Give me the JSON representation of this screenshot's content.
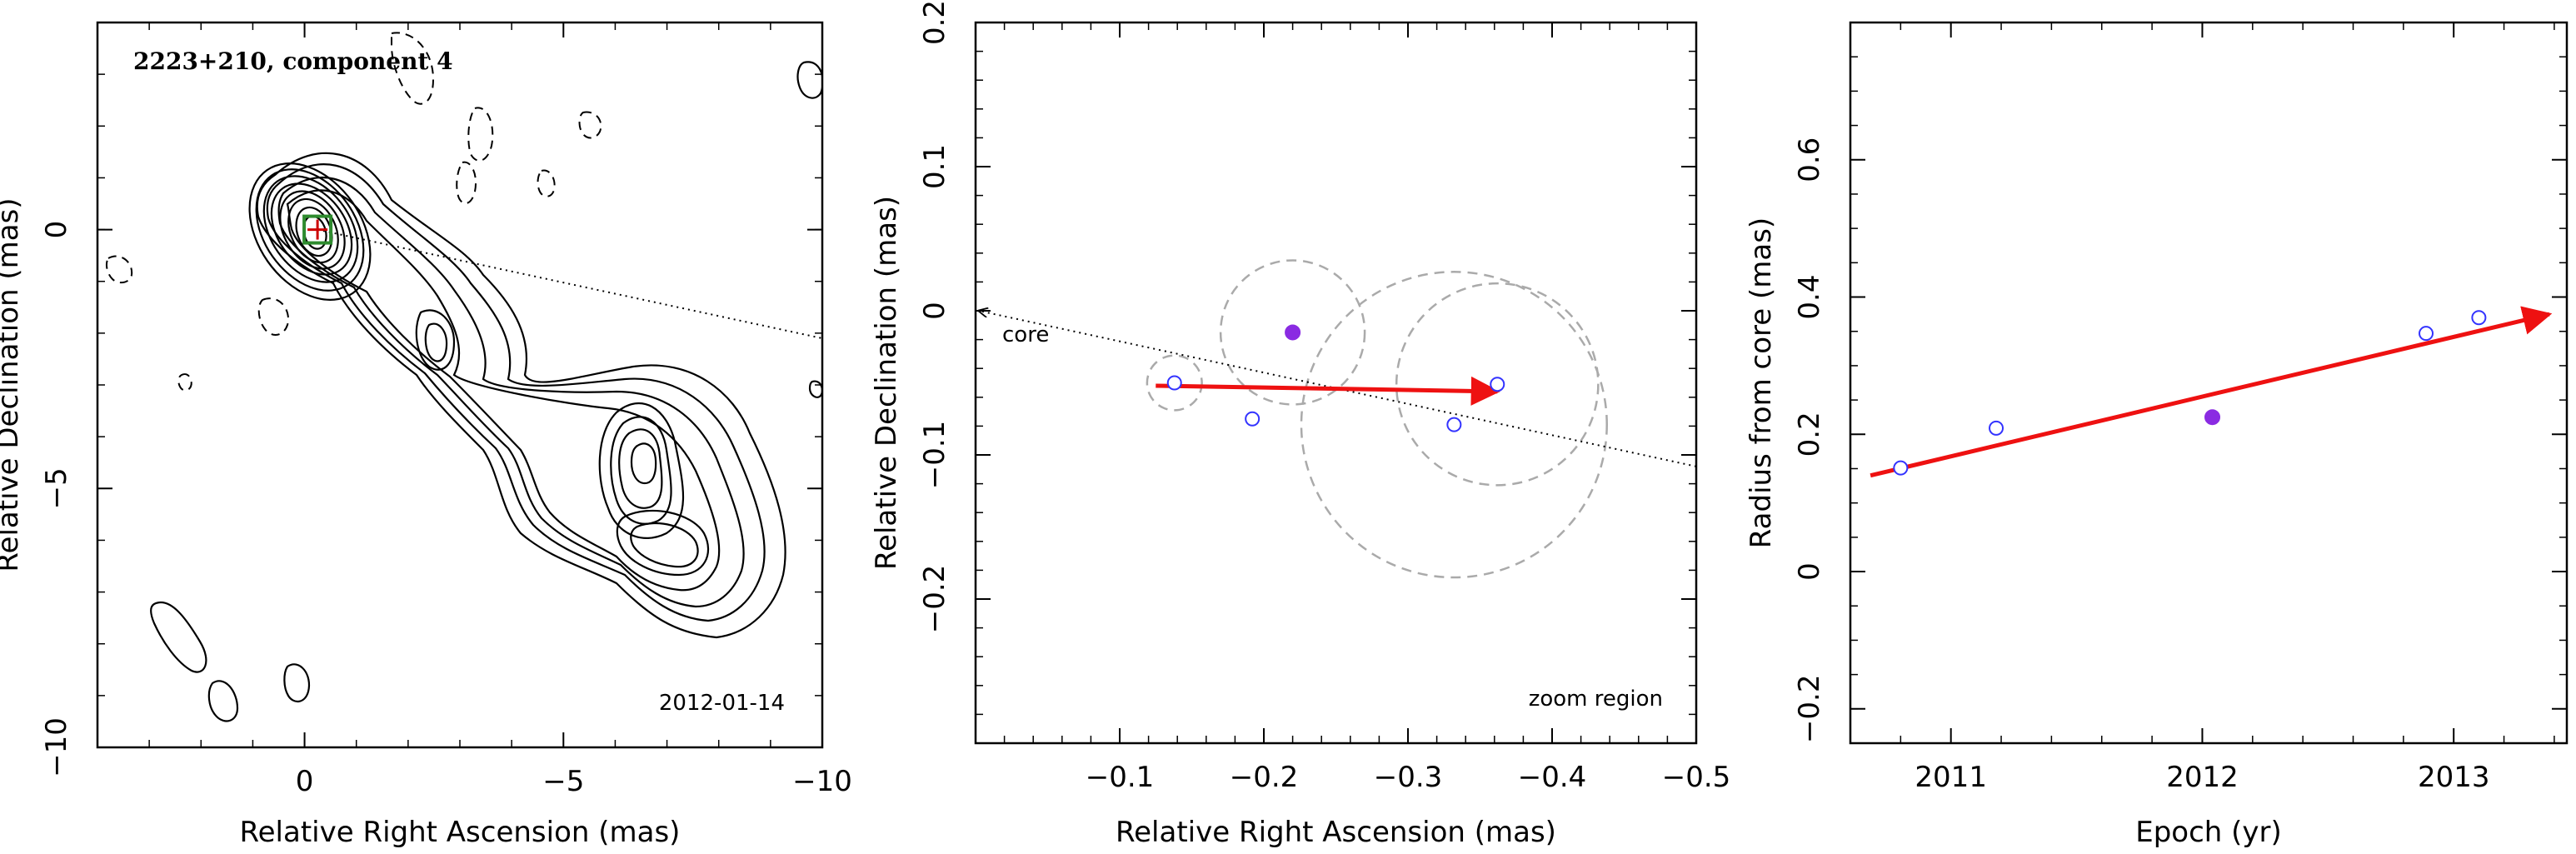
{
  "chart_data": [
    {
      "type": "contour",
      "title": "2223+210, component 4",
      "date_label": "2012-01-14",
      "xlabel": "Relative Right Ascension (mas)",
      "ylabel": "Relative Declination (mas)",
      "xlim": [
        4,
        -10
      ],
      "ylim": [
        -10,
        4
      ],
      "xticks": [
        0,
        -5,
        -10
      ],
      "yticks": [
        0,
        -5,
        -10
      ],
      "xtick_labels": [
        "0",
        "−5",
        "−10"
      ],
      "ytick_labels": [
        "0",
        "−5",
        "−10"
      ],
      "marker": {
        "x": -0.25,
        "y": 0.0,
        "symbol": "green square with cross"
      },
      "direction_line": {
        "from": [
          -0.25,
          0.0
        ],
        "to": [
          -10,
          -2.1
        ]
      },
      "colors": {
        "contour": "#000000",
        "marker": "#2e8b2e",
        "cross": "#cc0000"
      }
    },
    {
      "type": "scatter",
      "xlabel": "Relative Right Ascension (mas)",
      "ylabel": "Relative Declination (mas)",
      "xlim": [
        0,
        -0.5
      ],
      "ylim": [
        -0.3,
        0.2
      ],
      "xticks": [
        -0.1,
        -0.2,
        -0.3,
        -0.4,
        -0.5
      ],
      "yticks": [
        0.2,
        0.1,
        0,
        -0.1,
        -0.2
      ],
      "xtick_labels": [
        "−0.1",
        "−0.2",
        "−0.3",
        "−0.4",
        "−0.5"
      ],
      "ytick_labels": [
        "0.2",
        "0.1",
        "0",
        "−0.1",
        "−0.2"
      ],
      "core_label": "core",
      "region_label": "zoom region",
      "points_open": [
        {
          "x": -0.138,
          "y": -0.05,
          "r": 0.019
        },
        {
          "x": -0.192,
          "y": -0.075,
          "r": 0.0
        },
        {
          "x": -0.332,
          "y": -0.079,
          "r": 0.106
        },
        {
          "x": -0.362,
          "y": -0.051,
          "r": 0.07
        }
      ],
      "points_filled": [
        {
          "x": -0.22,
          "y": -0.015,
          "r": 0.05
        }
      ],
      "direction_line": {
        "from": [
          0,
          0
        ],
        "to": [
          -0.5,
          -0.108
        ]
      },
      "motion_arrow": {
        "from": [
          -0.125,
          -0.052
        ],
        "to": [
          -0.362,
          -0.056
        ]
      },
      "colors": {
        "open": "#3333ff",
        "filled": "#8a2be2",
        "arrow": "#ee1111",
        "error": "#aaaaaa"
      }
    },
    {
      "type": "scatter",
      "xlabel": "Epoch (yr)",
      "ylabel": "Radius from core (mas)",
      "xlim": [
        2010.6,
        2013.45
      ],
      "ylim": [
        -0.25,
        0.8
      ],
      "xticks": [
        2011,
        2012,
        2013
      ],
      "yticks": [
        0.6,
        0.4,
        0.2,
        0,
        -0.2
      ],
      "xtick_labels": [
        "2011",
        "2012",
        "2013"
      ],
      "ytick_labels": [
        "0.6",
        "0.4",
        "0.2",
        "0",
        "−0.2"
      ],
      "points_open": [
        {
          "x": 2010.8,
          "y": 0.151
        },
        {
          "x": 2011.18,
          "y": 0.209
        },
        {
          "x": 2012.89,
          "y": 0.347
        },
        {
          "x": 2013.1,
          "y": 0.37
        }
      ],
      "points_filled": [
        {
          "x": 2012.04,
          "y": 0.225
        }
      ],
      "fit_arrow": {
        "from": [
          2010.68,
          0.14
        ],
        "to": [
          2013.38,
          0.375
        ]
      },
      "colors": {
        "open": "#3333ff",
        "filled": "#8a2be2",
        "arrow": "#ee1111"
      }
    }
  ]
}
